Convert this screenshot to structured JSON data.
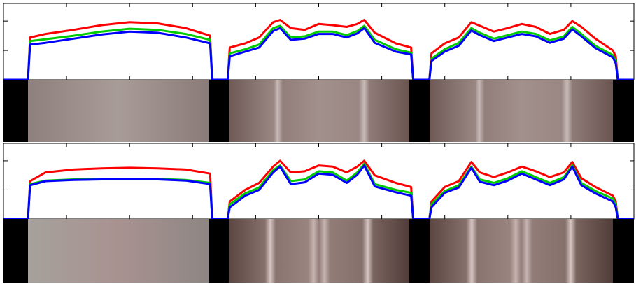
{
  "chart_data": [
    {
      "type": "line",
      "x": [
        0,
        35,
        38,
        60,
        100,
        140,
        180,
        220,
        260,
        295,
        298,
        320,
        323,
        345,
        365,
        385,
        395,
        410,
        430,
        450,
        470,
        490,
        505,
        515,
        530,
        560,
        582,
        585,
        608,
        611,
        630,
        650,
        668,
        680,
        700,
        720,
        740,
        760,
        780,
        800,
        812,
        825,
        845,
        870,
        874,
        877,
        900
      ],
      "xlim": [
        0,
        900
      ],
      "ylim": [
        0,
        1.3
      ],
      "xticks": [
        90,
        180,
        270,
        360,
        450,
        540,
        630,
        720,
        810
      ],
      "yticks": [
        0.5,
        1
      ],
      "series": [
        {
          "color": "#ff0000",
          "values": [
            0,
            0,
            0.72,
            0.78,
            0.85,
            0.93,
            0.98,
            0.96,
            0.88,
            0.75,
            0,
            0,
            0.55,
            0.62,
            0.72,
            0.98,
            1.02,
            0.88,
            0.85,
            0.95,
            0.93,
            0.9,
            0.95,
            1.02,
            0.8,
            0.62,
            0.55,
            0,
            0,
            0.45,
            0.62,
            0.72,
            0.98,
            0.92,
            0.82,
            0.88,
            0.95,
            0.9,
            0.78,
            0.85,
            1.0,
            0.9,
            0.7,
            0.5,
            0.4,
            0,
            0
          ]
        },
        {
          "color": "#00cc00",
          "values": [
            0,
            0,
            0.66,
            0.69,
            0.75,
            0.82,
            0.87,
            0.85,
            0.78,
            0.68,
            0,
            0,
            0.45,
            0.52,
            0.6,
            0.88,
            0.92,
            0.72,
            0.74,
            0.82,
            0.82,
            0.76,
            0.83,
            0.92,
            0.68,
            0.52,
            0.46,
            0,
            0,
            0.36,
            0.52,
            0.63,
            0.88,
            0.8,
            0.7,
            0.76,
            0.82,
            0.78,
            0.67,
            0.74,
            0.9,
            0.78,
            0.58,
            0.42,
            0.32,
            0,
            0
          ]
        },
        {
          "color": "#0000ff",
          "values": [
            0,
            0,
            0.6,
            0.63,
            0.7,
            0.77,
            0.82,
            0.8,
            0.72,
            0.62,
            0,
            0,
            0.4,
            0.48,
            0.55,
            0.83,
            0.88,
            0.68,
            0.7,
            0.78,
            0.78,
            0.72,
            0.79,
            0.88,
            0.63,
            0.48,
            0.43,
            0,
            0,
            0.32,
            0.48,
            0.58,
            0.84,
            0.76,
            0.66,
            0.72,
            0.78,
            0.74,
            0.63,
            0.7,
            0.86,
            0.74,
            0.54,
            0.38,
            0.28,
            0,
            0
          ]
        }
      ]
    },
    {
      "type": "line",
      "x": [
        0,
        35,
        38,
        60,
        100,
        140,
        180,
        220,
        260,
        295,
        298,
        320,
        323,
        345,
        365,
        385,
        395,
        410,
        430,
        450,
        470,
        490,
        505,
        515,
        530,
        560,
        582,
        585,
        608,
        611,
        630,
        650,
        668,
        680,
        700,
        720,
        740,
        760,
        780,
        800,
        812,
        825,
        845,
        870,
        874,
        877,
        900
      ],
      "xlim": [
        0,
        900
      ],
      "ylim": [
        0,
        1.3
      ],
      "xticks": [
        90,
        180,
        270,
        360,
        450,
        540,
        630,
        720,
        810
      ],
      "yticks": [
        0.5,
        1
      ],
      "series": [
        {
          "color": "#ff0000",
          "values": [
            0,
            0,
            0.65,
            0.8,
            0.85,
            0.87,
            0.88,
            0.87,
            0.85,
            0.78,
            0,
            0,
            0.3,
            0.5,
            0.62,
            0.9,
            1.0,
            0.8,
            0.82,
            0.92,
            0.9,
            0.8,
            0.9,
            1.0,
            0.75,
            0.62,
            0.55,
            0,
            0,
            0.3,
            0.55,
            0.65,
            0.98,
            0.8,
            0.72,
            0.8,
            0.9,
            0.82,
            0.72,
            0.8,
            0.98,
            0.7,
            0.55,
            0.4,
            0.3,
            0,
            0
          ]
        },
        {
          "color": "#00cc00",
          "values": [
            0,
            0,
            0.6,
            0.66,
            0.68,
            0.69,
            0.69,
            0.69,
            0.67,
            0.62,
            0,
            0,
            0.25,
            0.44,
            0.54,
            0.84,
            0.92,
            0.65,
            0.68,
            0.82,
            0.8,
            0.66,
            0.8,
            0.95,
            0.6,
            0.5,
            0.45,
            0,
            0,
            0.25,
            0.48,
            0.58,
            0.9,
            0.68,
            0.62,
            0.7,
            0.82,
            0.72,
            0.62,
            0.72,
            0.92,
            0.62,
            0.48,
            0.35,
            0.25,
            0,
            0
          ]
        },
        {
          "color": "#0000ff",
          "values": [
            0,
            0,
            0.58,
            0.65,
            0.67,
            0.68,
            0.68,
            0.68,
            0.66,
            0.6,
            0,
            0,
            0.2,
            0.4,
            0.5,
            0.8,
            0.9,
            0.6,
            0.63,
            0.78,
            0.76,
            0.62,
            0.76,
            0.92,
            0.56,
            0.46,
            0.4,
            0,
            0,
            0.2,
            0.45,
            0.54,
            0.88,
            0.64,
            0.58,
            0.66,
            0.78,
            0.68,
            0.58,
            0.68,
            0.9,
            0.58,
            0.44,
            0.3,
            0.2,
            0,
            0
          ]
        }
      ]
    }
  ]
}
